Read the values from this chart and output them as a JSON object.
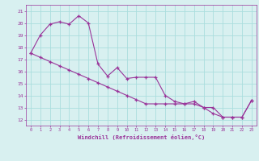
{
  "x": [
    0,
    1,
    2,
    3,
    4,
    5,
    6,
    7,
    8,
    9,
    10,
    11,
    12,
    13,
    14,
    15,
    16,
    17,
    18,
    19,
    20,
    21,
    22,
    23
  ],
  "y_jagged": [
    17.5,
    19.0,
    19.9,
    20.1,
    19.9,
    20.6,
    20.0,
    16.6,
    15.6,
    16.3,
    15.4,
    15.5,
    15.5,
    15.5,
    14.0,
    13.5,
    13.3,
    13.5,
    13.0,
    13.0,
    12.2,
    12.2,
    12.2,
    13.6
  ],
  "y_smooth": [
    17.5,
    17.15,
    16.8,
    16.45,
    16.1,
    15.75,
    15.4,
    15.05,
    14.7,
    14.35,
    14.0,
    13.65,
    13.3,
    13.3,
    13.3,
    13.3,
    13.3,
    13.3,
    13.0,
    12.5,
    12.2,
    12.2,
    12.2,
    13.6
  ],
  "line_color": "#993399",
  "bg_color": "#d8f0f0",
  "grid_color": "#aadddd",
  "xlabel": "Windchill (Refroidissement éolien,°C)",
  "ylabel_ticks": [
    12,
    13,
    14,
    15,
    16,
    17,
    18,
    19,
    20,
    21
  ],
  "xlim": [
    -0.5,
    23.5
  ],
  "ylim": [
    11.5,
    21.5
  ]
}
